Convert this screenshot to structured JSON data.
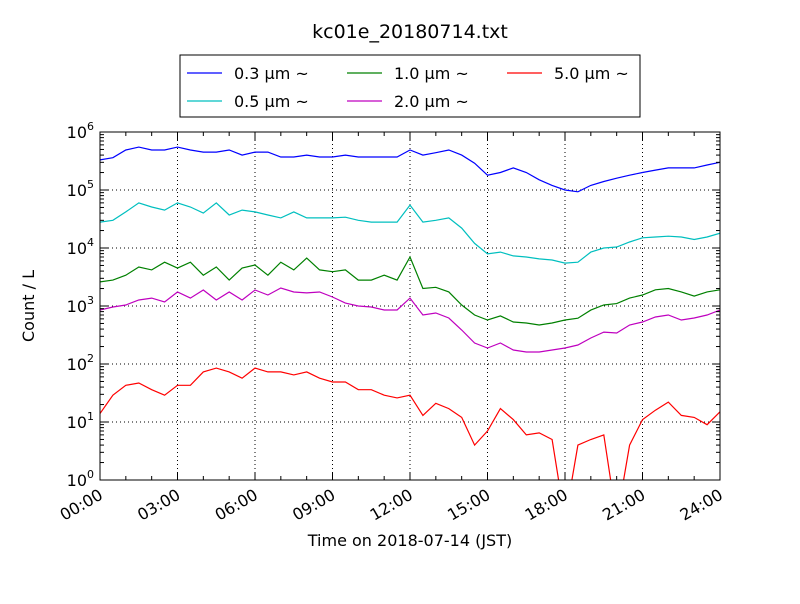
{
  "chart_data": {
    "type": "line",
    "title": "kc01e_20180714.txt",
    "xlabel": "Time on 2018-07-14 (JST)",
    "ylabel": "Count / L",
    "yscale": "log",
    "ylim": [
      1,
      1000000
    ],
    "xlim_hours": [
      0,
      24
    ],
    "grid": true,
    "legend_position": "top-center, above plot",
    "x_tick_labels": [
      "00:00",
      "03:00",
      "06:00",
      "09:00",
      "12:00",
      "15:00",
      "18:00",
      "21:00",
      "24:00"
    ],
    "y_tick_labels": [
      {
        "base": "10",
        "exp": "0"
      },
      {
        "base": "10",
        "exp": "1"
      },
      {
        "base": "10",
        "exp": "2"
      },
      {
        "base": "10",
        "exp": "3"
      },
      {
        "base": "10",
        "exp": "4"
      },
      {
        "base": "10",
        "exp": "5"
      },
      {
        "base": "10",
        "exp": "6"
      }
    ],
    "x_hours": [
      0,
      0.5,
      1,
      1.5,
      2,
      2.5,
      3,
      3.5,
      4,
      4.5,
      5,
      5.5,
      6,
      6.5,
      7,
      7.5,
      8,
      8.5,
      9,
      9.5,
      10,
      10.5,
      11,
      11.5,
      12,
      12.5,
      13,
      13.5,
      14,
      14.5,
      15,
      15.5,
      16,
      16.5,
      17,
      17.5,
      18,
      18.5,
      19,
      19.5,
      20,
      20.5,
      21,
      21.5,
      22,
      22.5,
      23,
      23.5,
      24
    ],
    "series": [
      {
        "name": "0.3 μm ~",
        "color": "#0000ff",
        "values": [
          330000,
          360000,
          490000,
          550000,
          490000,
          490000,
          550000,
          490000,
          450000,
          450000,
          490000,
          400000,
          450000,
          450000,
          370000,
          370000,
          400000,
          370000,
          370000,
          400000,
          370000,
          370000,
          370000,
          370000,
          490000,
          400000,
          440000,
          490000,
          400000,
          290000,
          180000,
          200000,
          240000,
          200000,
          150000,
          120000,
          100000,
          93000,
          120000,
          140000,
          160000,
          180000,
          200000,
          220000,
          240000,
          240000,
          240000,
          270000,
          300000
        ]
      },
      {
        "name": "0.5 μm ~",
        "color": "#00bfbf",
        "values": [
          28000,
          30000,
          42000,
          60000,
          51000,
          45000,
          60000,
          51000,
          40000,
          60000,
          37000,
          45000,
          42000,
          37000,
          33000,
          42000,
          33000,
          33000,
          33000,
          34000,
          30000,
          28000,
          28000,
          28000,
          55000,
          28000,
          30000,
          33000,
          22000,
          12000,
          7900,
          8500,
          7300,
          7000,
          6500,
          6200,
          5500,
          5700,
          8500,
          10000,
          10400,
          12700,
          15000,
          15500,
          16000,
          15500,
          14000,
          15500,
          18000
        ]
      },
      {
        "name": "1.0 μm ~",
        "color": "#008000",
        "values": [
          2600,
          2800,
          3400,
          4700,
          4200,
          5700,
          4500,
          5700,
          3400,
          4700,
          2800,
          4500,
          5100,
          3400,
          5700,
          4200,
          6700,
          4200,
          3900,
          4200,
          2800,
          2800,
          3400,
          2800,
          7000,
          2000,
          2100,
          1750,
          1040,
          700,
          574,
          675,
          530,
          510,
          470,
          510,
          574,
          617,
          850,
          1040,
          1100,
          1370,
          1550,
          1900,
          2000,
          1750,
          1480,
          1750,
          1900
        ]
      },
      {
        "name": "2.0 μm ~",
        "color": "#bf00bf",
        "values": [
          853,
          961,
          1040,
          1270,
          1370,
          1170,
          1740,
          1370,
          1890,
          1270,
          1740,
          1270,
          1890,
          1550,
          2040,
          1740,
          1680,
          1740,
          1430,
          1120,
          1000,
          961,
          853,
          853,
          1370,
          700,
          757,
          621,
          386,
          230,
          189,
          230,
          174,
          161,
          161,
          174,
          189,
          213,
          281,
          355,
          342,
          470,
          530,
          646,
          700,
          574,
          621,
          700,
          853
        ]
      },
      {
        "name": "5.0 μm ~",
        "color": "#ff0000",
        "values": [
          14,
          29,
          43,
          47,
          36,
          29,
          43,
          43,
          73,
          85,
          73,
          57,
          85,
          73,
          73,
          65,
          73,
          57,
          49,
          49,
          36,
          36,
          29,
          26,
          29,
          13,
          21,
          17,
          12,
          4,
          7,
          17,
          11,
          6,
          6.5,
          5,
          0,
          4,
          5,
          6,
          0,
          4,
          11,
          16,
          22,
          13,
          12,
          9,
          15
        ]
      }
    ]
  }
}
